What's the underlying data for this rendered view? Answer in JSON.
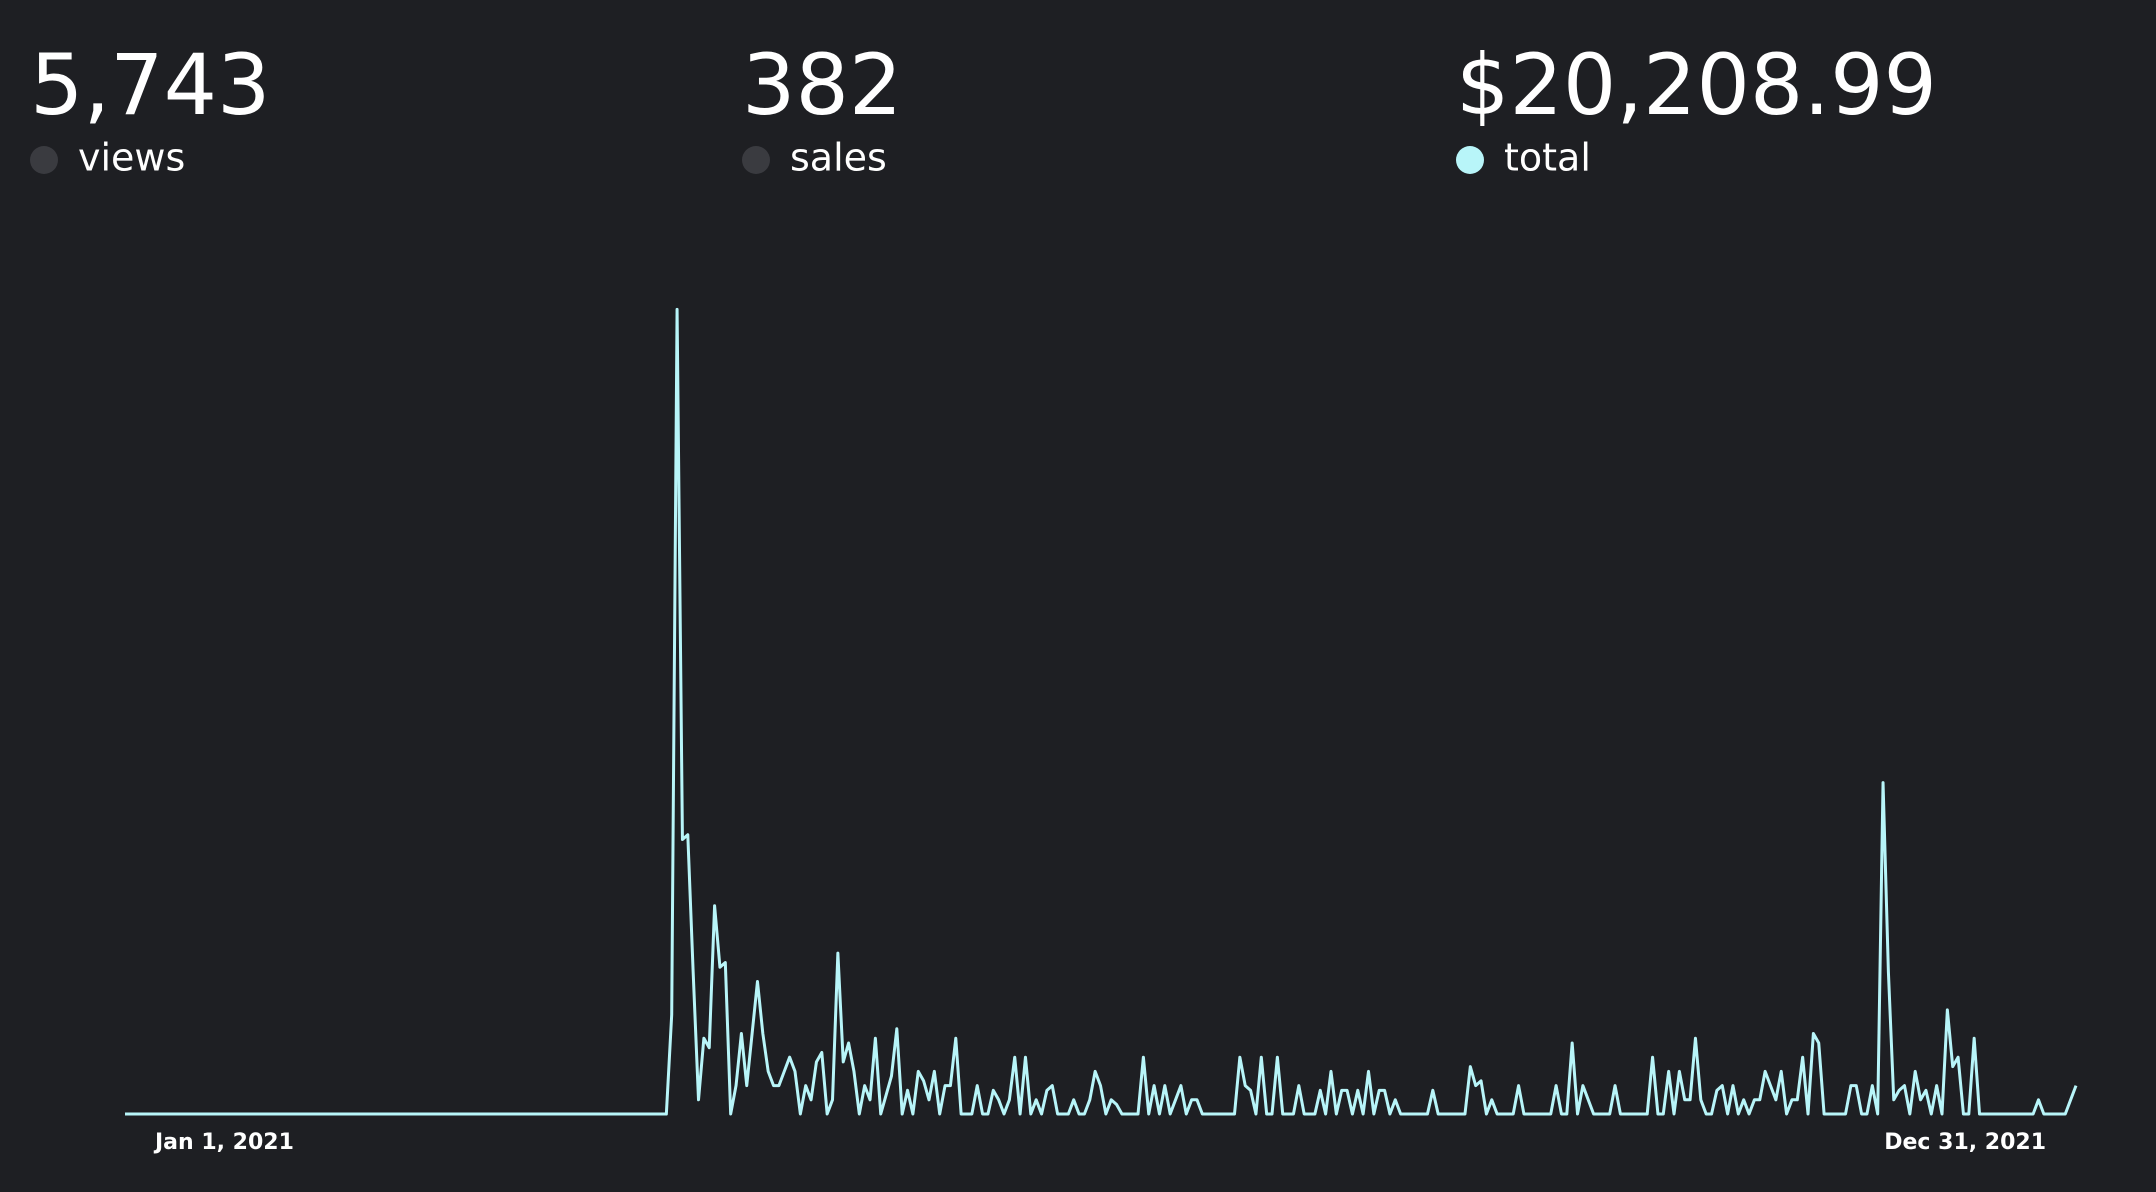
{
  "stats": [
    {
      "value": "5,743",
      "label": "views",
      "color": "#3a3b40",
      "label_color": "#ffffff"
    },
    {
      "value": "382",
      "label": "sales",
      "color": "#3a3b40",
      "label_color": "#ffffff"
    },
    {
      "value": "$20,208.99",
      "color": "#b8f5f9",
      "label_color": "#b8f5f9"
    }
  ],
  "chart_data": {
    "type": "line",
    "categories": [
      "Jan 1, 2021",
      null,
      null,
      null,
      null,
      null,
      null,
      null,
      null,
      null,
      null,
      null,
      null,
      null,
      null,
      null,
      null,
      null,
      null,
      null,
      null,
      null,
      null,
      null,
      null,
      null,
      null,
      null,
      null,
      null,
      null,
      null,
      null,
      null,
      null,
      null,
      null,
      null,
      null,
      null,
      null,
      null,
      null,
      null,
      null,
      null,
      null,
      null,
      null,
      null,
      null,
      null,
      null,
      null,
      null,
      null,
      null,
      null,
      null,
      null,
      null,
      null,
      null,
      null,
      null,
      null,
      null,
      null,
      null,
      null,
      null,
      null,
      null,
      null,
      null,
      null,
      null,
      null,
      null,
      null,
      null,
      null,
      null,
      null,
      null,
      null,
      null,
      null,
      null,
      null,
      null,
      null,
      null,
      null,
      null,
      null,
      null,
      null,
      null,
      null,
      null,
      null,
      null,
      null,
      null,
      null,
      null,
      null,
      null,
      null,
      null,
      null,
      null,
      null,
      null,
      null,
      null,
      null,
      null,
      null,
      null,
      null,
      null,
      null,
      null,
      null,
      null,
      null,
      null,
      null,
      null,
      null,
      null,
      null,
      null,
      null,
      null,
      null,
      null,
      null,
      null,
      null,
      null,
      null,
      null,
      null,
      null,
      null,
      null,
      null,
      null,
      null,
      null,
      null,
      null,
      null,
      null,
      null,
      null,
      null,
      null,
      null,
      null,
      null,
      null,
      null,
      null,
      null,
      null,
      null,
      null,
      null,
      null,
      null,
      null,
      null,
      null,
      null,
      null,
      null,
      null,
      null,
      null,
      null,
      null,
      null,
      null,
      null,
      null,
      null,
      null,
      null,
      null,
      null,
      null,
      null,
      null,
      null,
      null,
      null,
      null,
      null,
      null,
      null,
      null,
      null,
      null,
      null,
      null,
      null,
      null,
      null,
      null,
      null,
      null,
      null,
      null,
      null,
      null,
      null,
      null,
      null,
      null,
      null,
      null,
      null,
      null,
      null,
      null,
      null,
      null,
      null,
      null,
      null,
      null,
      null,
      null,
      null,
      null,
      null,
      null,
      null,
      null,
      null,
      null,
      null,
      null,
      null,
      null,
      null,
      null,
      null,
      null,
      null,
      null,
      null,
      null,
      null,
      null,
      null,
      null,
      null,
      null,
      null,
      null,
      null,
      null,
      null,
      null,
      null,
      null,
      null,
      null,
      null,
      null,
      null,
      null,
      null,
      null,
      null,
      null,
      null,
      null,
      null,
      null,
      null,
      null,
      null,
      null,
      null,
      null,
      null,
      null,
      null,
      null,
      null,
      null,
      null,
      null,
      null,
      null,
      null,
      null,
      null,
      null,
      null,
      null,
      null,
      null,
      null,
      null,
      null,
      null,
      null,
      null,
      null,
      null,
      null,
      null,
      null,
      null,
      null,
      null,
      null,
      null,
      null,
      null,
      null,
      null,
      null,
      null,
      null,
      null,
      null,
      null,
      null,
      null,
      null,
      null,
      null,
      null,
      null,
      null,
      null,
      null,
      null,
      null,
      null,
      null,
      null,
      null,
      null,
      null,
      null,
      null,
      null,
      null,
      null,
      null,
      null,
      null,
      null,
      null,
      null,
      "Dec 31, 2021"
    ],
    "series": [
      {
        "name": "total",
        "color": "#b8f5f9",
        "values": [
          0,
          0,
          0,
          0,
          0,
          0,
          0,
          0,
          0,
          0,
          0,
          0,
          0,
          0,
          0,
          0,
          0,
          0,
          0,
          0,
          0,
          0,
          0,
          0,
          0,
          0,
          0,
          0,
          0,
          0,
          0,
          0,
          0,
          0,
          0,
          0,
          0,
          0,
          0,
          0,
          0,
          0,
          0,
          0,
          0,
          0,
          0,
          0,
          0,
          0,
          0,
          0,
          0,
          0,
          0,
          0,
          0,
          0,
          0,
          0,
          0,
          0,
          0,
          0,
          0,
          0,
          0,
          0,
          0,
          0,
          0,
          0,
          0,
          0,
          0,
          0,
          0,
          0,
          0,
          0,
          0,
          0,
          0,
          0,
          0,
          0,
          0,
          0,
          0,
          0,
          0,
          0,
          0,
          0,
          0,
          0,
          0,
          0,
          0,
          0,
          0,
          0,
          210,
          1700,
          580,
          590,
          300,
          30,
          160,
          140,
          440,
          310,
          320,
          0,
          60,
          170,
          60,
          170,
          280,
          170,
          90,
          60,
          60,
          90,
          120,
          90,
          0,
          60,
          30,
          110,
          130,
          0,
          30,
          340,
          110,
          150,
          90,
          0,
          60,
          30,
          160,
          0,
          40,
          80,
          180,
          0,
          50,
          0,
          90,
          70,
          30,
          90,
          0,
          60,
          60,
          160,
          0,
          0,
          0,
          60,
          0,
          0,
          50,
          30,
          0,
          30,
          120,
          0,
          120,
          0,
          30,
          0,
          50,
          60,
          0,
          0,
          0,
          30,
          0,
          0,
          30,
          90,
          60,
          0,
          30,
          20,
          0,
          0,
          0,
          0,
          120,
          0,
          60,
          0,
          60,
          0,
          30,
          60,
          0,
          30,
          30,
          0,
          0,
          0,
          0,
          0,
          0,
          0,
          120,
          60,
          50,
          0,
          120,
          0,
          0,
          120,
          0,
          0,
          0,
          60,
          0,
          0,
          0,
          50,
          0,
          90,
          0,
          50,
          50,
          0,
          50,
          0,
          90,
          0,
          50,
          50,
          0,
          30,
          0,
          0,
          0,
          0,
          0,
          0,
          50,
          0,
          0,
          0,
          0,
          0,
          0,
          100,
          60,
          70,
          0,
          30,
          0,
          0,
          0,
          0,
          60,
          0,
          0,
          0,
          0,
          0,
          0,
          60,
          0,
          0,
          150,
          0,
          60,
          30,
          0,
          0,
          0,
          0,
          60,
          0,
          0,
          0,
          0,
          0,
          0,
          120,
          0,
          0,
          90,
          0,
          90,
          30,
          30,
          160,
          30,
          0,
          0,
          50,
          60,
          0,
          60,
          0,
          30,
          0,
          30,
          30,
          90,
          60,
          30,
          90,
          0,
          30,
          30,
          120,
          0,
          170,
          150,
          0,
          0,
          0,
          0,
          0,
          60,
          60,
          0,
          0,
          60,
          0,
          700,
          300,
          30,
          50,
          60,
          0,
          90,
          30,
          50,
          0,
          60,
          0,
          220,
          100,
          120,
          0,
          0,
          160,
          0,
          0,
          0,
          0,
          0,
          0,
          0,
          0,
          0,
          0,
          0,
          30,
          0,
          0,
          0,
          0,
          0,
          30,
          60
        ]
      }
    ],
    "ylim": [
      0,
      1800
    ]
  }
}
